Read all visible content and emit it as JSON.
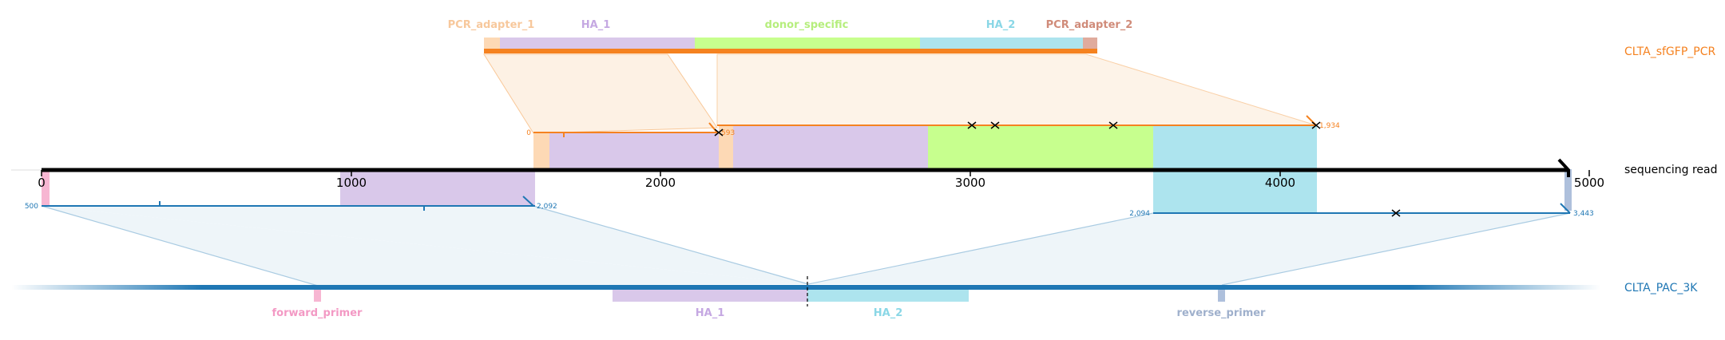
{
  "reads": {
    "donor": {
      "name": "CLTA_sfGFP_PCR",
      "color": "#f58220"
    },
    "read": {
      "name": "sequencing read",
      "color": "#000000"
    },
    "reference": {
      "name": "CLTA_PAC_3K",
      "color": "#1f77b4"
    }
  },
  "donor_features": [
    {
      "label": "PCR_adapter_1",
      "color": "#fdd9b5",
      "label_color": "#f7c89c"
    },
    {
      "label": "HA_1",
      "color": "#d9c8ea",
      "label_color": "#c5a8e2"
    },
    {
      "label": "donor_specific",
      "color": "#c7ff8e",
      "label_color": "#b6ee7d"
    },
    {
      "label": "HA_2",
      "color": "#ade4ee",
      "label_color": "#8ad7e6"
    },
    {
      "label": "PCR_adapter_2",
      "color": "#e0ab9d",
      "label_color": "#d08b79"
    }
  ],
  "reference_features": [
    {
      "label": "forward_primer",
      "color": "#f7b6d2",
      "label_color": "#f399c4"
    },
    {
      "label": "HA_1",
      "color": "#d9c8ea",
      "label_color": "#c5a8e2"
    },
    {
      "label": "HA_2",
      "color": "#ade4ee",
      "label_color": "#8ad7e6"
    },
    {
      "label": "reverse_primer",
      "color": "#aec0dc",
      "label_color": "#9fb0cc"
    }
  ],
  "axis": {
    "ticks": [
      "0",
      "1000",
      "2000",
      "3000",
      "4000",
      "5000"
    ]
  },
  "alignment_labels": {
    "donor_first_start": "0",
    "donor_first_end": "593",
    "donor_second_end": "1,934",
    "ref_first_start": "500",
    "ref_first_end": "2,092",
    "ref_second_start": "2,094",
    "ref_second_end": "3,443"
  },
  "colors": {
    "donor_fill": "#fdf1e4",
    "ref_fill": "#eef5f9",
    "ref_line": "#a9cbe2"
  }
}
